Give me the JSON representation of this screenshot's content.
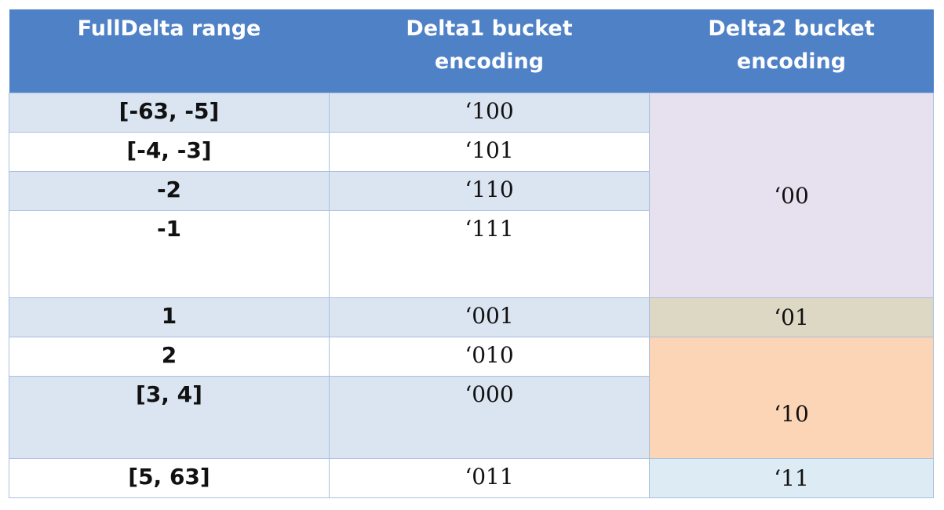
{
  "table": {
    "headers": [
      {
        "line1": "FullDelta range",
        "line2": ""
      },
      {
        "line1": "Delta1 bucket",
        "line2": "encoding"
      },
      {
        "line1": "Delta2 bucket",
        "line2": "encoding"
      }
    ],
    "rows": [
      {
        "range": "[-63, -5]",
        "delta1": "‘100"
      },
      {
        "range": "[-4, -3]",
        "delta1": "‘101"
      },
      {
        "range": "-2",
        "delta1": "‘110"
      },
      {
        "range": "-1",
        "delta1": "‘111"
      },
      {
        "range": "1",
        "delta1": "‘001"
      },
      {
        "range": "2",
        "delta1": "‘010"
      },
      {
        "range": "[3, 4]",
        "delta1": "‘000"
      },
      {
        "range": "[5, 63]",
        "delta1": "‘011"
      }
    ],
    "delta2_groups": [
      {
        "value": "‘00",
        "spans_rows": 4
      },
      {
        "value": "‘01",
        "spans_rows": 1
      },
      {
        "value": "‘10",
        "spans_rows": 2
      },
      {
        "value": "‘11",
        "spans_rows": 1
      }
    ],
    "colors": {
      "header": "#4f81c7",
      "row_alt": "#dbe5f2",
      "delta2_00": "#e7e0ef",
      "delta2_01": "#ddd8c4",
      "delta2_10": "#fcd5b6",
      "delta2_11": "#dcebf4"
    }
  }
}
